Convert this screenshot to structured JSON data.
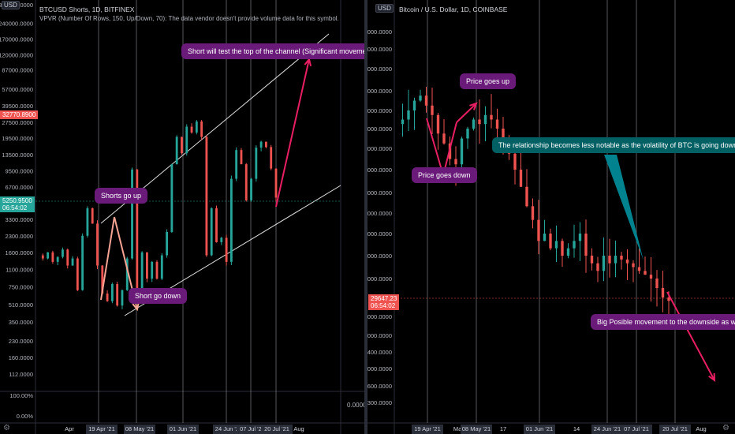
{
  "left": {
    "usd_label": "USD",
    "title": "BTCUSD Shorts, 1D, BITFINEX",
    "indicator": "VPVR (Number Of Rows, 150, Up/Down, 70): The data vendor doesn't provide volume data for this symbol.",
    "price_tag": "32770.8900",
    "current_tag_value": "5250.9500",
    "current_tag_time": "06:54:02",
    "annotations": {
      "short_test": "Short will test the top of the channel (Significant movement)",
      "shorts_up": "Shorts go up",
      "short_down": "Short go down"
    },
    "volume_axis_value": "0.0000",
    "settings_icon": "gear-icon"
  },
  "right": {
    "usd_label": "USD",
    "title": "Bitcoin / U.S. Dollar, 1D, COINBASE",
    "current_tag_value": "29647.23",
    "current_tag_time": "06:54:02",
    "annotations": {
      "price_up": "Price goes up",
      "price_down": "Price goes down",
      "relationship": "The relationship becomes less notable as the volatility of BTC is going down.",
      "big_move": "Big Posible movement to the downside as well."
    },
    "settings_icon": "gear-icon"
  },
  "colors": {
    "up": "#26a69a",
    "down": "#ef5350",
    "annotation_purple": "#6a1b7a",
    "annotation_teal": "#006064",
    "arrow_red": "#e91e63",
    "arrow_peach": "#f7a494"
  },
  "chart_data": [
    {
      "type": "line",
      "title": "BTCUSD Shorts, 1D, BITFINEX",
      "y_scale": "log",
      "y_ticks": [
        "360000.0000",
        "240000.0000",
        "170000.0000",
        "120000.0000",
        "87000.0000",
        "57000.0000",
        "39500.0000",
        "27500.0000",
        "19500.0000",
        "13500.0000",
        "9500.0000",
        "6700.0000",
        "3300.0000",
        "2300.0000",
        "1600.0000",
        "1100.0000",
        "750.0000",
        "510.0000",
        "350.0000",
        "230.0000",
        "160.0000",
        "112.0000"
      ],
      "volume_ticks": [
        "100.00%",
        "0.00%"
      ],
      "x_ticks": [
        "Apr",
        "19 Apr '21",
        "08 May '21",
        "01 Jun '21",
        "24 Jun '21",
        "07 Jul '21",
        "20 Jul '21",
        "Aug"
      ],
      "series": [
        {
          "values": [
            1500,
            1400,
            1600,
            1300,
            1450,
            1700,
            1200,
            1400,
            700,
            2300,
            4200,
            3000,
            1200,
            650,
            550,
            800,
            500,
            700,
            1400,
            9800,
            700,
            1600,
            900,
            1300,
            900,
            1500,
            2500,
            11000,
            20000,
            14000,
            25000,
            22000,
            28000,
            20000,
            1500,
            4200,
            2000,
            2200,
            1300,
            8000,
            15000,
            11000,
            5000,
            8000,
            15800,
            18000,
            16000,
            10000,
            5300
          ]
        }
      ],
      "projection_target": 57000
    },
    {
      "type": "line",
      "title": "Bitcoin / U.S. Dollar, 1D, COINBASE",
      "y_ticks": [
        "80000.0000",
        "75000.0000",
        "70000.0000",
        "64000.0000",
        "60000.0000",
        "56000.0000",
        "52000.0000",
        "48000.0000",
        "44000.0000",
        "41000.0000",
        "38000.0000",
        "35000.0000",
        "32000.0000",
        "28000.0000",
        "26000.0000",
        "24400.0000",
        "23000.0000",
        "21600.0000",
        "20300.0000"
      ],
      "x_ticks": [
        "19 Apr '21",
        "May",
        "08 May '21",
        "17",
        "01 Jun '21",
        "14",
        "24 Jun '21",
        "Jul",
        "07 Jul '21",
        "20 Jul '21",
        "Aug"
      ],
      "series": [
        {
          "values": [
            57000,
            58000,
            60000,
            62000,
            63000,
            61000,
            59000,
            55000,
            53000,
            50000,
            49000,
            54000,
            56000,
            58000,
            57000,
            59000,
            58000,
            56000,
            53000,
            51000,
            48000,
            45000,
            42000,
            40000,
            37000,
            38000,
            36000,
            37000,
            35000,
            36000,
            37000,
            38000,
            35000,
            34000,
            33000,
            35000,
            34000,
            35000,
            34500,
            34000,
            33500,
            33000,
            32500,
            32000,
            31000,
            30000,
            29647
          ]
        }
      ],
      "projection_target": 22500
    }
  ]
}
